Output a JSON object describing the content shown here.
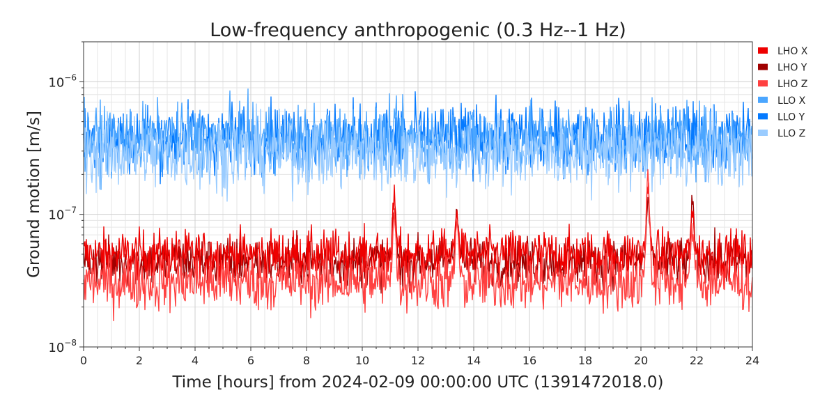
{
  "chart_data": {
    "type": "line",
    "title": "Low-frequency anthropogenic (0.3 Hz--1 Hz)",
    "xlabel": "Time [hours] from 2024-02-09 00:00:00 UTC (1391472018.0)",
    "ylabel": "Ground motion [m/s]",
    "xlim": [
      0,
      24
    ],
    "ylim": [
      1e-08,
      2e-06
    ],
    "yscale": "log",
    "grid": true,
    "legend_position": "right",
    "x_ticks": [
      "0",
      "2",
      "4",
      "6",
      "8",
      "10",
      "12",
      "14",
      "16",
      "18",
      "20",
      "22",
      "24"
    ],
    "y_ticks": [
      {
        "mantissa": "10",
        "exp": "−8"
      },
      {
        "mantissa": "10",
        "exp": "−7"
      },
      {
        "mantissa": "10",
        "exp": "−6"
      }
    ],
    "x_step_hours": 0.1,
    "series": [
      {
        "name": "LHO X",
        "color": "#ee0000",
        "base": 5e-08,
        "noise": 0.1,
        "spikes": [
          [
            11.15,
            1.3e-07
          ],
          [
            13.4,
            1e-07
          ],
          [
            20.25,
            1.6e-07
          ],
          [
            21.85,
            1.05e-07
          ]
        ]
      },
      {
        "name": "LHO Y",
        "color": "#a00000",
        "base": 4.4e-08,
        "noise": 0.1,
        "spikes": [
          [
            11.15,
            1.15e-07
          ],
          [
            13.4,
            1.1e-07
          ],
          [
            20.25,
            1.2e-07
          ],
          [
            21.85,
            1.2e-07
          ]
        ]
      },
      {
        "name": "LHO Z",
        "color": "#ff4040",
        "base": 3.1e-08,
        "noise": 0.12,
        "spikes": [
          [
            11.15,
            1e-07
          ],
          [
            13.4,
            9e-08
          ],
          [
            20.25,
            1.9e-07
          ],
          [
            21.85,
            8e-08
          ]
        ]
      },
      {
        "name": "LLO X",
        "color": "#4ba6ff",
        "base": 3.7e-07,
        "noise": 0.14,
        "spikes": []
      },
      {
        "name": "LLO Y",
        "color": "#057aff",
        "base": 3.8e-07,
        "noise": 0.14,
        "spikes": []
      },
      {
        "name": "LLO Z",
        "color": "#9accff",
        "base": 2.9e-07,
        "noise": 0.15,
        "spikes": []
      }
    ]
  }
}
